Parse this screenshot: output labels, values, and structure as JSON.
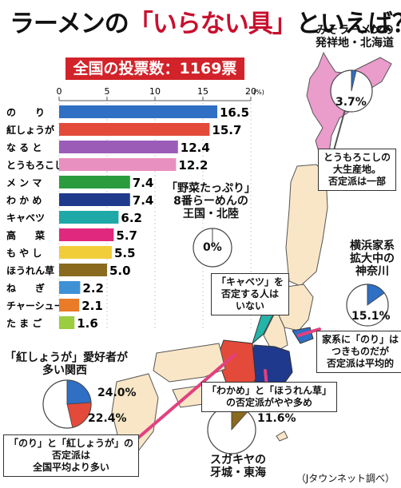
{
  "title": {
    "prefix": "ラーメンの",
    "highlight": "「いらない具」",
    "suffix": "といえば？"
  },
  "banner": "全国の投票数：1169票",
  "source": "（Jタウンネット調べ）",
  "chart_data": {
    "type": "bar",
    "orientation": "horizontal",
    "xlim": [
      0,
      20
    ],
    "ticks": [
      0,
      5,
      10,
      15,
      20
    ],
    "unit": "(%)",
    "categories": [
      "の　　り",
      "紅しょうが",
      "な る と",
      "とうもろこし",
      "メ ン マ",
      "わ か め",
      "キャベツ",
      "高　　菜",
      "も や し",
      "ほうれん草",
      "ね　　ぎ",
      "チャーシュー",
      "た ま ご"
    ],
    "values": [
      16.5,
      15.7,
      12.4,
      12.2,
      7.4,
      7.4,
      6.2,
      5.7,
      5.5,
      5.0,
      2.2,
      2.1,
      1.6
    ],
    "value_labels": [
      "16.5",
      "15.7",
      "12.4",
      "12.2",
      "7.4",
      "7.4",
      "6.2",
      "5.7",
      "5.5",
      "5.0",
      "2.2",
      "2.1",
      "1.6"
    ],
    "colors": [
      "#2f6fc4",
      "#e34a3a",
      "#9b5cb8",
      "#e890c0",
      "#2a9c3e",
      "#1f3a8c",
      "#1fa8a8",
      "#e0287e",
      "#f2cd3a",
      "#8a6a1e",
      "#3f91d6",
      "#ea7b28",
      "#9ccc40"
    ]
  },
  "regions": {
    "hokkaido": {
      "label_lines": [
        "みそラーメンの",
        "発祥地・北海道"
      ],
      "pct": "3.7%",
      "value": 3.7,
      "color": "#2f6fc4",
      "box_lines": [
        "とうもろこしの",
        "大生産地。",
        "否定派は一部"
      ]
    },
    "hokuriku": {
      "label_lines": [
        "「野菜たっぷり」",
        "8番らーめんの",
        "王国・北陸"
      ],
      "pct": "0%",
      "value": 0,
      "box_lines": [
        "「キャベツ」を",
        "否定する人は",
        "いない"
      ]
    },
    "kanagawa": {
      "label_lines": [
        "横浜家系",
        "拡大中の",
        "神奈川"
      ],
      "pct": "15.1%",
      "value": 15.1,
      "color": "#2f6fc4",
      "box_lines": [
        "家系に「のり」は",
        "つきものだが",
        "否定派は平均的"
      ]
    },
    "kansai": {
      "label_lines": [
        "「紅しょうが」愛好者が",
        "多い関西"
      ],
      "pcts": [
        "24.0%",
        "22.4%"
      ],
      "values": [
        24.0,
        22.4
      ],
      "colors": [
        "#2f6fc4",
        "#e34a3a"
      ],
      "box_lines": [
        "「のり」と「紅しょうが」の",
        "否定派は",
        "全国平均より多い"
      ]
    },
    "tokai": {
      "label_lines": [
        "スガキヤの",
        "牙城・東海"
      ],
      "pct": "11.6%",
      "value": 11.6,
      "color": "#8a6a1e",
      "box_lines": [
        "「わかめ」と「ほうれん草」",
        "の否定派がやや多め"
      ]
    }
  }
}
